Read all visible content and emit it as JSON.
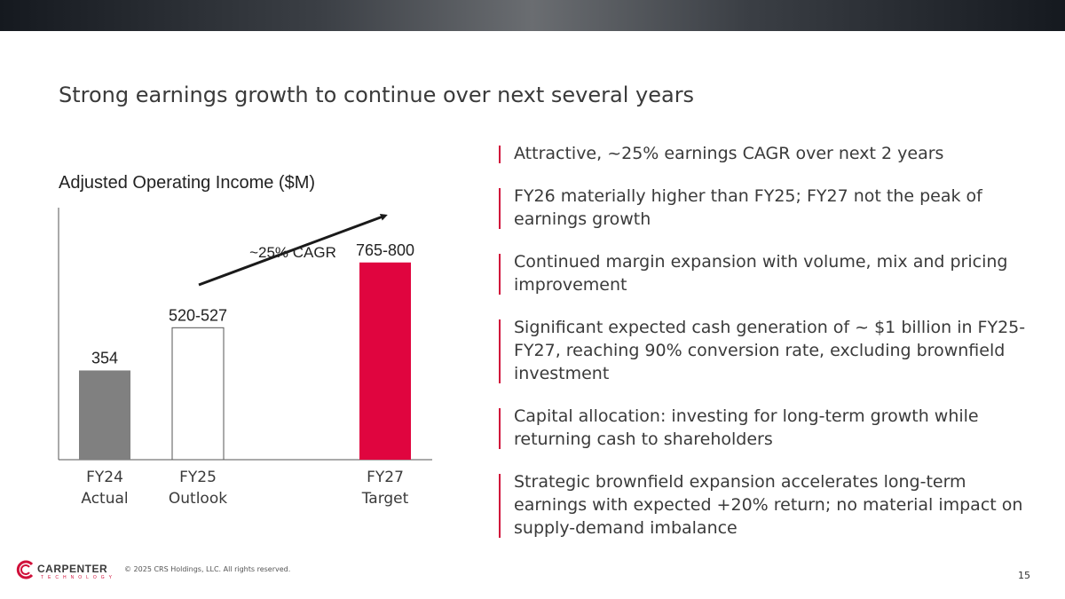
{
  "header": {
    "title": "Strong earnings growth to continue over next several years"
  },
  "colors": {
    "accent": "#d0103a",
    "actual_bar": "#808080",
    "outlook_bar": "#ffffff",
    "target_bar": "#e0053f"
  },
  "chart_data": {
    "type": "bar",
    "title": "Adjusted Operating Income ($M)",
    "categories": [
      {
        "line1": "FY24",
        "line2": "Actual"
      },
      {
        "line1": "FY25",
        "line2": "Outlook"
      },
      {
        "line1": "FY27",
        "line2": "Target"
      }
    ],
    "values": [
      354,
      523.5,
      782.5
    ],
    "value_labels": [
      "354",
      "520-527",
      "765-800"
    ],
    "annotation": "~25% CAGR",
    "ylim": [
      0,
      1000
    ],
    "xlabel": "",
    "ylabel": ""
  },
  "bullets": [
    "Attractive, ~25% earnings CAGR over next 2 years",
    "FY26 materially higher than FY25; FY27 not the peak of earnings growth",
    "Continued margin expansion with volume, mix and pricing improvement",
    "Significant expected cash generation of ~ $1 billion in FY25-FY27, reaching 90% conversion rate, excluding brownfield investment",
    "Capital allocation: investing for long-term growth while returning cash to shareholders",
    "Strategic brownfield expansion accelerates long-term earnings with expected +20% return; no material impact on supply-demand imbalance"
  ],
  "footer": {
    "logo_name": "CARPENTER",
    "logo_sub": "TECHNOLOGY",
    "copyright": "© 2025 CRS Holdings, LLC. All rights reserved.",
    "page_number": "15"
  }
}
